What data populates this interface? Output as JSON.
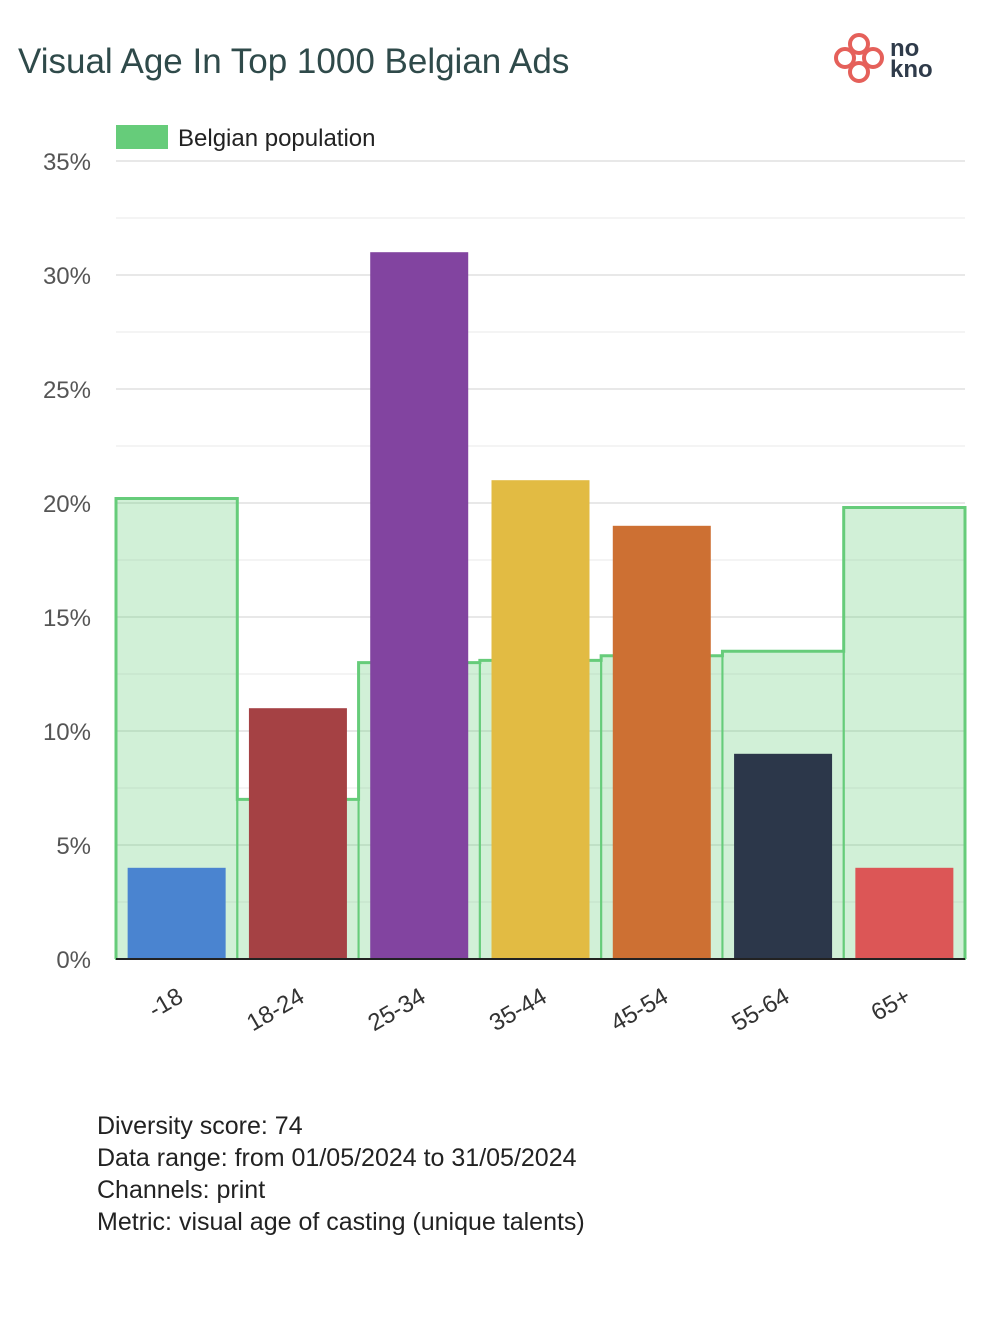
{
  "title": "Visual Age In Top 1000 Belgian Ads",
  "logo": {
    "icon": "clover-logo-icon",
    "line1": "no",
    "line2": "kno",
    "color": "#e5605a"
  },
  "chart_data": {
    "type": "bar",
    "categories": [
      "-18",
      "18-24",
      "25-34",
      "35-44",
      "45-54",
      "55-64",
      "65+"
    ],
    "series": [
      {
        "values": [
          4,
          11,
          31,
          21,
          19,
          9,
          4
        ],
        "colors": [
          "#4a84d0",
          "#a54144",
          "#8244a0",
          "#e2bb43",
          "#cd7033",
          "#2c374a",
          "#dc5656"
        ]
      },
      {
        "name": "Belgian population",
        "type": "step-area",
        "values": [
          20.2,
          7,
          13,
          13.1,
          13.3,
          13.5,
          19.8
        ],
        "color": "#66cc7a"
      }
    ],
    "ylim": [
      0,
      35
    ],
    "yticks": [
      "0%",
      "5%",
      "10%",
      "15%",
      "20%",
      "25%",
      "30%",
      "35%"
    ],
    "ytick_values": [
      0,
      5,
      10,
      15,
      20,
      25,
      30,
      35
    ],
    "grid": true,
    "legend": "top-left"
  },
  "footer": {
    "diversity": "Diversity score: 74",
    "range": "Data range: from 01/05/2024 to 31/05/2024",
    "channels": "Channels: print",
    "metric": "Metric: visual age of casting (unique talents)"
  }
}
